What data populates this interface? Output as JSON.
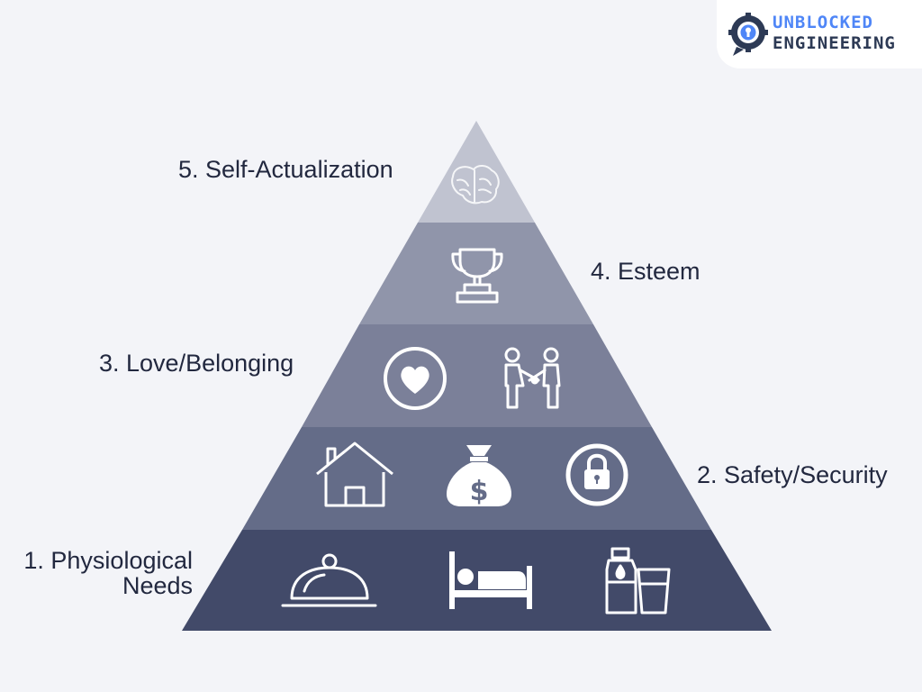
{
  "brand": {
    "line1": "UNBLOCKED",
    "line2": "ENGINEERING",
    "accent_color": "#4f86f7",
    "text_color": "#2d3a55",
    "icon": "gear-keyhole-icon"
  },
  "pyramid": {
    "levels": [
      {
        "label_line1": "1. Physiological",
        "label_line2": "Needs",
        "color": "#424a69",
        "icons": [
          "food-cloche-icon",
          "bed-icon",
          "water-bottle-glass-icon"
        ]
      },
      {
        "label": "2. Safety/Security",
        "color": "#646c88",
        "icons": [
          "house-icon",
          "money-bag-icon",
          "lock-icon"
        ]
      },
      {
        "label": "3. Love/Belonging",
        "color": "#7b8099",
        "icons": [
          "heart-circle-icon",
          "handshake-people-icon"
        ]
      },
      {
        "label": "4. Esteem",
        "color": "#9095aa",
        "icons": [
          "trophy-icon"
        ]
      },
      {
        "label": "5. Self-Actualization",
        "color": "#c0c3d0",
        "icons": [
          "brain-icon"
        ]
      }
    ]
  }
}
